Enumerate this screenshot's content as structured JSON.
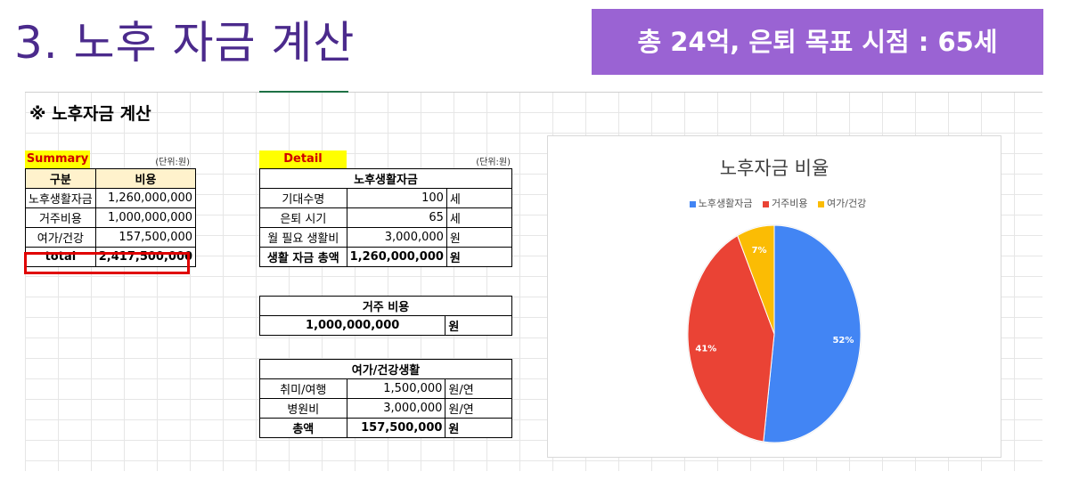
{
  "slide": {
    "title": "3. 노후 자금 계산",
    "banner": "총 24억, 은퇴 목표 시점 : 65세"
  },
  "sheet": {
    "heading": "※ 노후자금 계산",
    "summary": {
      "label": "Summary",
      "unit": "(단위:원)",
      "headers": [
        "구분",
        "비용"
      ],
      "rows": [
        {
          "item": "노후생활자금",
          "cost": "1,260,000,000"
        },
        {
          "item": "거주비용",
          "cost": "1,000,000,000"
        },
        {
          "item": "여가/건강",
          "cost": "157,500,000"
        }
      ],
      "total_label": "total",
      "total_value": "2,417,500,000"
    },
    "detail": {
      "label": "Detail",
      "unit": "(단위:원)",
      "living": {
        "title": "노후생활자금",
        "rows": [
          {
            "item": "기대수명",
            "value": "100",
            "unit": "세"
          },
          {
            "item": "은퇴 시기",
            "value": "65",
            "unit": "세"
          },
          {
            "item": "월 필요 생활비",
            "value": "3,000,000",
            "unit": "원"
          }
        ],
        "total": {
          "item": "생활 자금 총액",
          "value": "1,260,000,000",
          "unit": "원"
        }
      },
      "housing": {
        "title": "거주 비용",
        "value": "1,000,000,000",
        "unit": "원"
      },
      "leisure": {
        "title": "여가/건강생활",
        "rows": [
          {
            "item": "취미/여행",
            "value": "1,500,000",
            "unit": "원/연"
          },
          {
            "item": "병원비",
            "value": "3,000,000",
            "unit": "원/연"
          }
        ],
        "total": {
          "item": "총액",
          "value": "157,500,000",
          "unit": "원"
        }
      }
    }
  },
  "chart_data": {
    "type": "pie",
    "title": "노후자금 비율",
    "legend_position": "top",
    "categories": [
      "노후생활자금",
      "거주비용",
      "여가/건강"
    ],
    "values": [
      52,
      41,
      7
    ],
    "labels": [
      "52%",
      "41%",
      "7%"
    ],
    "colors": [
      "#4285f4",
      "#ea4335",
      "#fbbc04"
    ]
  }
}
